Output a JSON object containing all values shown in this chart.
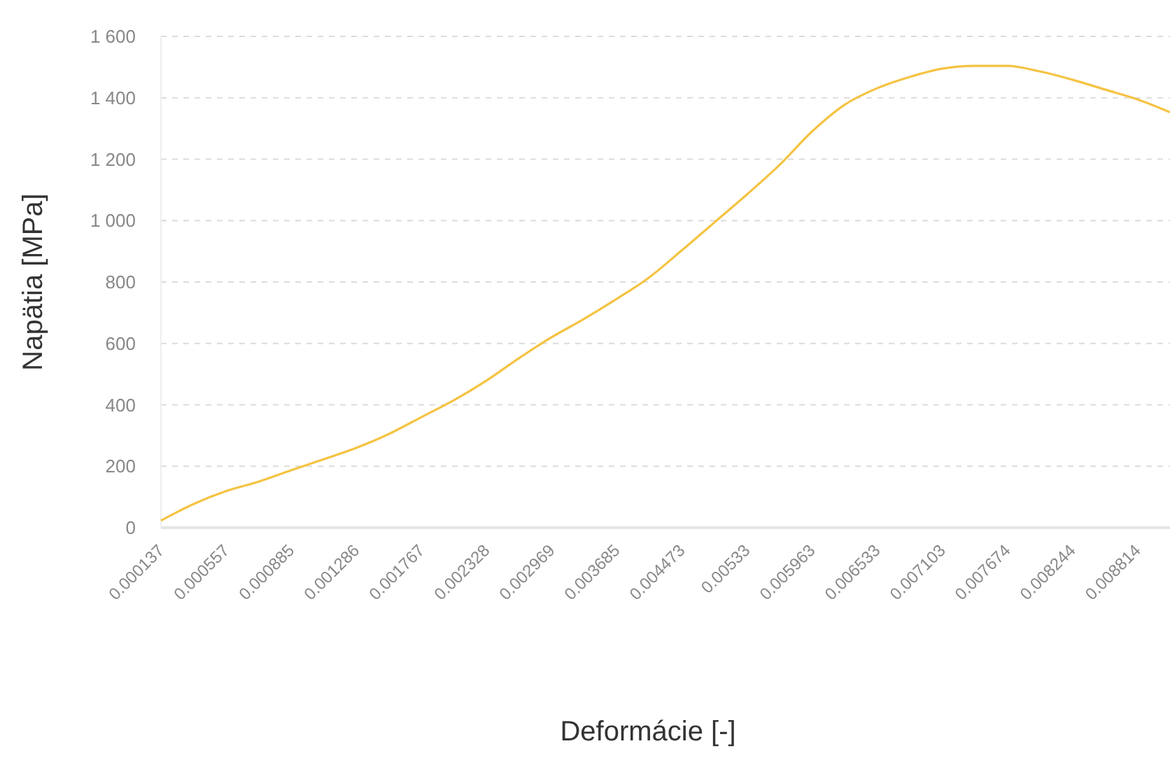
{
  "chart_data": {
    "type": "line",
    "xlabel": "Deformácie [-]",
    "ylabel": "Napätia [MPa]",
    "categories": [
      "0.000137",
      null,
      "0.000557",
      null,
      "0.000885",
      null,
      "0.001286",
      null,
      "0.001767",
      null,
      "0.002328",
      null,
      "0.002969",
      null,
      "0.003685",
      null,
      "0.004473",
      null,
      "0.00533",
      null,
      "0.005963",
      null,
      "0.006533",
      null,
      "0.007103",
      null,
      "0.007674",
      null,
      "0.008244",
      null,
      "0.008814",
      null
    ],
    "series": [
      {
        "color": "#f5c342",
        "values": [
          23,
          77,
          119,
          150,
          187,
          223,
          260,
          305,
          360,
          415,
          479,
          552,
          620,
          680,
          745,
          815,
          903,
          994,
          1085,
          1181,
          1290,
          1377,
          1431,
          1468,
          1495,
          1504,
          1504,
          1486,
          1459,
          1427,
          1395,
          1353
        ]
      }
    ],
    "ylim": [
      0,
      1600
    ],
    "yticks": [
      0,
      200,
      400,
      600,
      800,
      {
        "value": 1000,
        "label": "1 000"
      },
      {
        "value": 1200,
        "label": "1 200"
      },
      {
        "value": 1400,
        "label": "1 400"
      },
      {
        "value": 1600,
        "label": "1 600"
      }
    ],
    "grid": "y",
    "marker": "none",
    "line_style": "solid"
  }
}
